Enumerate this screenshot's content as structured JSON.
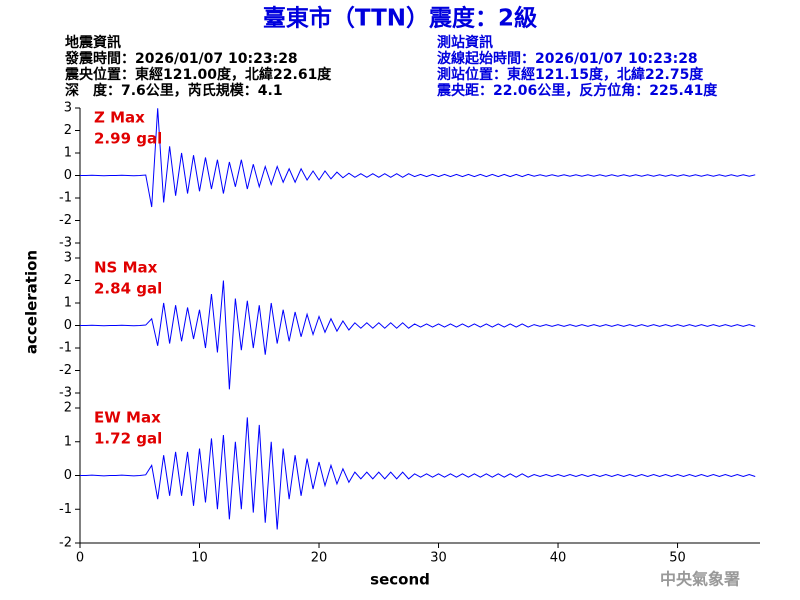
{
  "title": "臺東市（TTN）震度：2級",
  "earthquake_info": [
    "地震資訊",
    "發震時間：2026/01/07 10:23:28",
    "震央位置：東經121.00度，北緯22.61度",
    "深　度：7.6公里，芮氏規模：4.1"
  ],
  "station_info": [
    "測站資訊",
    "波線起始時間：2026/01/07 10:23:28",
    "測站位置：東經121.15度，北緯22.75度",
    "震央距：22.06公里，反方位角：225.41度"
  ],
  "ylabel": "acceleration",
  "footer": "中央氣象署",
  "time_axis": {
    "label": "second",
    "xlim": [
      0,
      56.9
    ],
    "xticks": [
      0,
      10,
      20,
      30,
      40,
      50
    ],
    "x": [
      0,
      0.5,
      1,
      1.5,
      2,
      2.5,
      3,
      3.5,
      4,
      4.5,
      5,
      5.5,
      6,
      6.5,
      7,
      7.5,
      8,
      8.5,
      9,
      9.5,
      10,
      10.5,
      11,
      11.5,
      12,
      12.5,
      13,
      13.5,
      14,
      14.5,
      15,
      15.5,
      16,
      16.5,
      17,
      17.5,
      18,
      18.5,
      19,
      19.5,
      20,
      20.5,
      21,
      21.5,
      22,
      22.5,
      23,
      23.5,
      24,
      24.5,
      25,
      25.5,
      26,
      26.5,
      27,
      27.5,
      28,
      28.5,
      29,
      29.5,
      30,
      30.5,
      31,
      31.5,
      32,
      32.5,
      33,
      33.5,
      34,
      34.5,
      35,
      35.5,
      36,
      36.5,
      37,
      37.5,
      38,
      38.5,
      39,
      39.5,
      40,
      40.5,
      41,
      41.5,
      42,
      42.5,
      43,
      43.5,
      44,
      44.5,
      45,
      45.5,
      46,
      46.5,
      47,
      47.5,
      48,
      48.5,
      49,
      49.5,
      50,
      50.5,
      51,
      51.5,
      52,
      52.5,
      53,
      53.5,
      54,
      54.5,
      55,
      55.5,
      56,
      56.5
    ]
  },
  "chart_data": [
    {
      "type": "line",
      "component": "Z Max",
      "max_label": "2.99 gal",
      "color": "#0000ff",
      "label_color": "#e00000",
      "ylim": [
        -3,
        3
      ],
      "yticks": [
        -3,
        -2,
        -1,
        0,
        1,
        2,
        3
      ],
      "values": [
        0,
        0,
        0.01,
        0,
        -0.01,
        0,
        0,
        0.01,
        0,
        -0.01,
        0,
        0.02,
        -1.4,
        2.99,
        -1.2,
        1.3,
        -0.9,
        1.0,
        -0.8,
        0.9,
        -0.7,
        0.8,
        -0.6,
        0.7,
        -0.8,
        0.6,
        -0.5,
        0.7,
        -0.6,
        0.5,
        -0.5,
        0.4,
        -0.4,
        0.4,
        -0.3,
        0.3,
        -0.3,
        0.3,
        -0.2,
        0.2,
        -0.2,
        0.2,
        -0.15,
        0.15,
        -0.1,
        0.1,
        -0.08,
        0.08,
        -0.08,
        0.08,
        -0.08,
        0.08,
        -0.08,
        0.08,
        -0.08,
        0.08,
        -0.05,
        0.05,
        -0.05,
        0.05,
        -0.05,
        0.05,
        -0.05,
        0.05,
        -0.05,
        0.05,
        -0.05,
        0.05,
        -0.05,
        0.05,
        -0.05,
        0.05,
        -0.05,
        0.05,
        -0.05,
        0.05,
        -0.03,
        0.03,
        -0.03,
        0.03,
        -0.03,
        0.03,
        -0.03,
        0.03,
        -0.03,
        0.03,
        -0.03,
        0.03,
        -0.03,
        0.03,
        -0.03,
        0.03,
        -0.03,
        0.03,
        -0.03,
        0.03,
        -0.03,
        0.03,
        -0.03,
        0.03,
        -0.03,
        0.03,
        -0.03,
        0.03,
        -0.03,
        0.03,
        -0.03,
        0.03,
        -0.03,
        0.03,
        -0.03,
        0.03,
        -0.03,
        0.03
      ]
    },
    {
      "type": "line",
      "component": "NS Max",
      "max_label": "2.84 gal",
      "color": "#0000ff",
      "label_color": "#e00000",
      "ylim": [
        -3,
        3
      ],
      "yticks": [
        -3,
        -2,
        -1,
        0,
        1,
        2,
        3
      ],
      "values": [
        0,
        0,
        0.01,
        0,
        -0.01,
        0,
        0,
        0.01,
        0,
        -0.01,
        0,
        0.02,
        0.3,
        -0.9,
        1.0,
        -0.8,
        0.9,
        -0.7,
        0.8,
        -0.6,
        0.7,
        -1.0,
        1.4,
        -1.2,
        2.0,
        -2.84,
        1.2,
        -1.1,
        1.1,
        -1.0,
        0.9,
        -1.3,
        1.0,
        -0.8,
        0.7,
        -0.7,
        0.6,
        -0.5,
        0.5,
        -0.4,
        0.4,
        -0.3,
        0.3,
        -0.25,
        0.2,
        -0.2,
        0.12,
        -0.12,
        0.12,
        -0.12,
        0.12,
        -0.12,
        0.12,
        -0.12,
        0.12,
        -0.12,
        0.07,
        -0.07,
        0.07,
        -0.07,
        0.07,
        -0.07,
        0.07,
        -0.07,
        0.07,
        -0.07,
        0.07,
        -0.07,
        0.07,
        -0.07,
        0.07,
        -0.07,
        0.07,
        -0.07,
        0.07,
        -0.07,
        0.04,
        -0.04,
        0.04,
        -0.04,
        0.04,
        -0.04,
        0.04,
        -0.04,
        0.04,
        -0.04,
        0.04,
        -0.04,
        0.04,
        -0.04,
        0.04,
        -0.04,
        0.04,
        -0.04,
        0.04,
        -0.04,
        0.04,
        -0.04,
        0.04,
        -0.04,
        0.04,
        -0.04,
        0.04,
        -0.04,
        0.04,
        -0.04,
        0.04,
        -0.04,
        0.04,
        -0.04,
        0.04,
        -0.04,
        0.04,
        -0.04
      ]
    },
    {
      "type": "line",
      "component": "EW Max",
      "max_label": "1.72 gal",
      "color": "#0000ff",
      "label_color": "#e00000",
      "ylim": [
        -2,
        2
      ],
      "yticks": [
        -2,
        -1,
        0,
        1,
        2
      ],
      "values": [
        0,
        0,
        0.01,
        0,
        -0.01,
        0,
        0,
        0.01,
        0,
        -0.01,
        0,
        0.02,
        0.3,
        -0.7,
        0.6,
        -0.6,
        0.7,
        -0.6,
        0.7,
        -0.9,
        0.8,
        -0.8,
        1.1,
        -1.0,
        1.2,
        -1.3,
        1.0,
        -1.0,
        1.72,
        -1.1,
        1.5,
        -1.4,
        1.0,
        -1.6,
        0.8,
        -0.7,
        0.6,
        -0.6,
        0.5,
        -0.4,
        0.4,
        -0.3,
        0.3,
        -0.25,
        0.2,
        -0.2,
        0.1,
        -0.1,
        0.1,
        -0.1,
        0.1,
        -0.1,
        0.1,
        -0.1,
        0.1,
        -0.1,
        0.05,
        -0.05,
        0.05,
        -0.05,
        0.05,
        -0.05,
        0.05,
        -0.05,
        0.05,
        -0.05,
        0.05,
        -0.05,
        0.05,
        -0.05,
        0.05,
        -0.05,
        0.05,
        -0.05,
        0.05,
        -0.05,
        0.03,
        -0.03,
        0.03,
        -0.03,
        0.03,
        -0.03,
        0.03,
        -0.03,
        0.03,
        -0.03,
        0.03,
        -0.03,
        0.03,
        -0.03,
        0.03,
        -0.03,
        0.03,
        -0.03,
        0.03,
        -0.03,
        0.03,
        -0.03,
        0.03,
        -0.03,
        0.03,
        -0.03,
        0.03,
        -0.03,
        0.03,
        -0.03,
        0.03,
        -0.03,
        0.03,
        -0.03,
        0.03,
        -0.03,
        0.03,
        -0.03
      ]
    }
  ]
}
